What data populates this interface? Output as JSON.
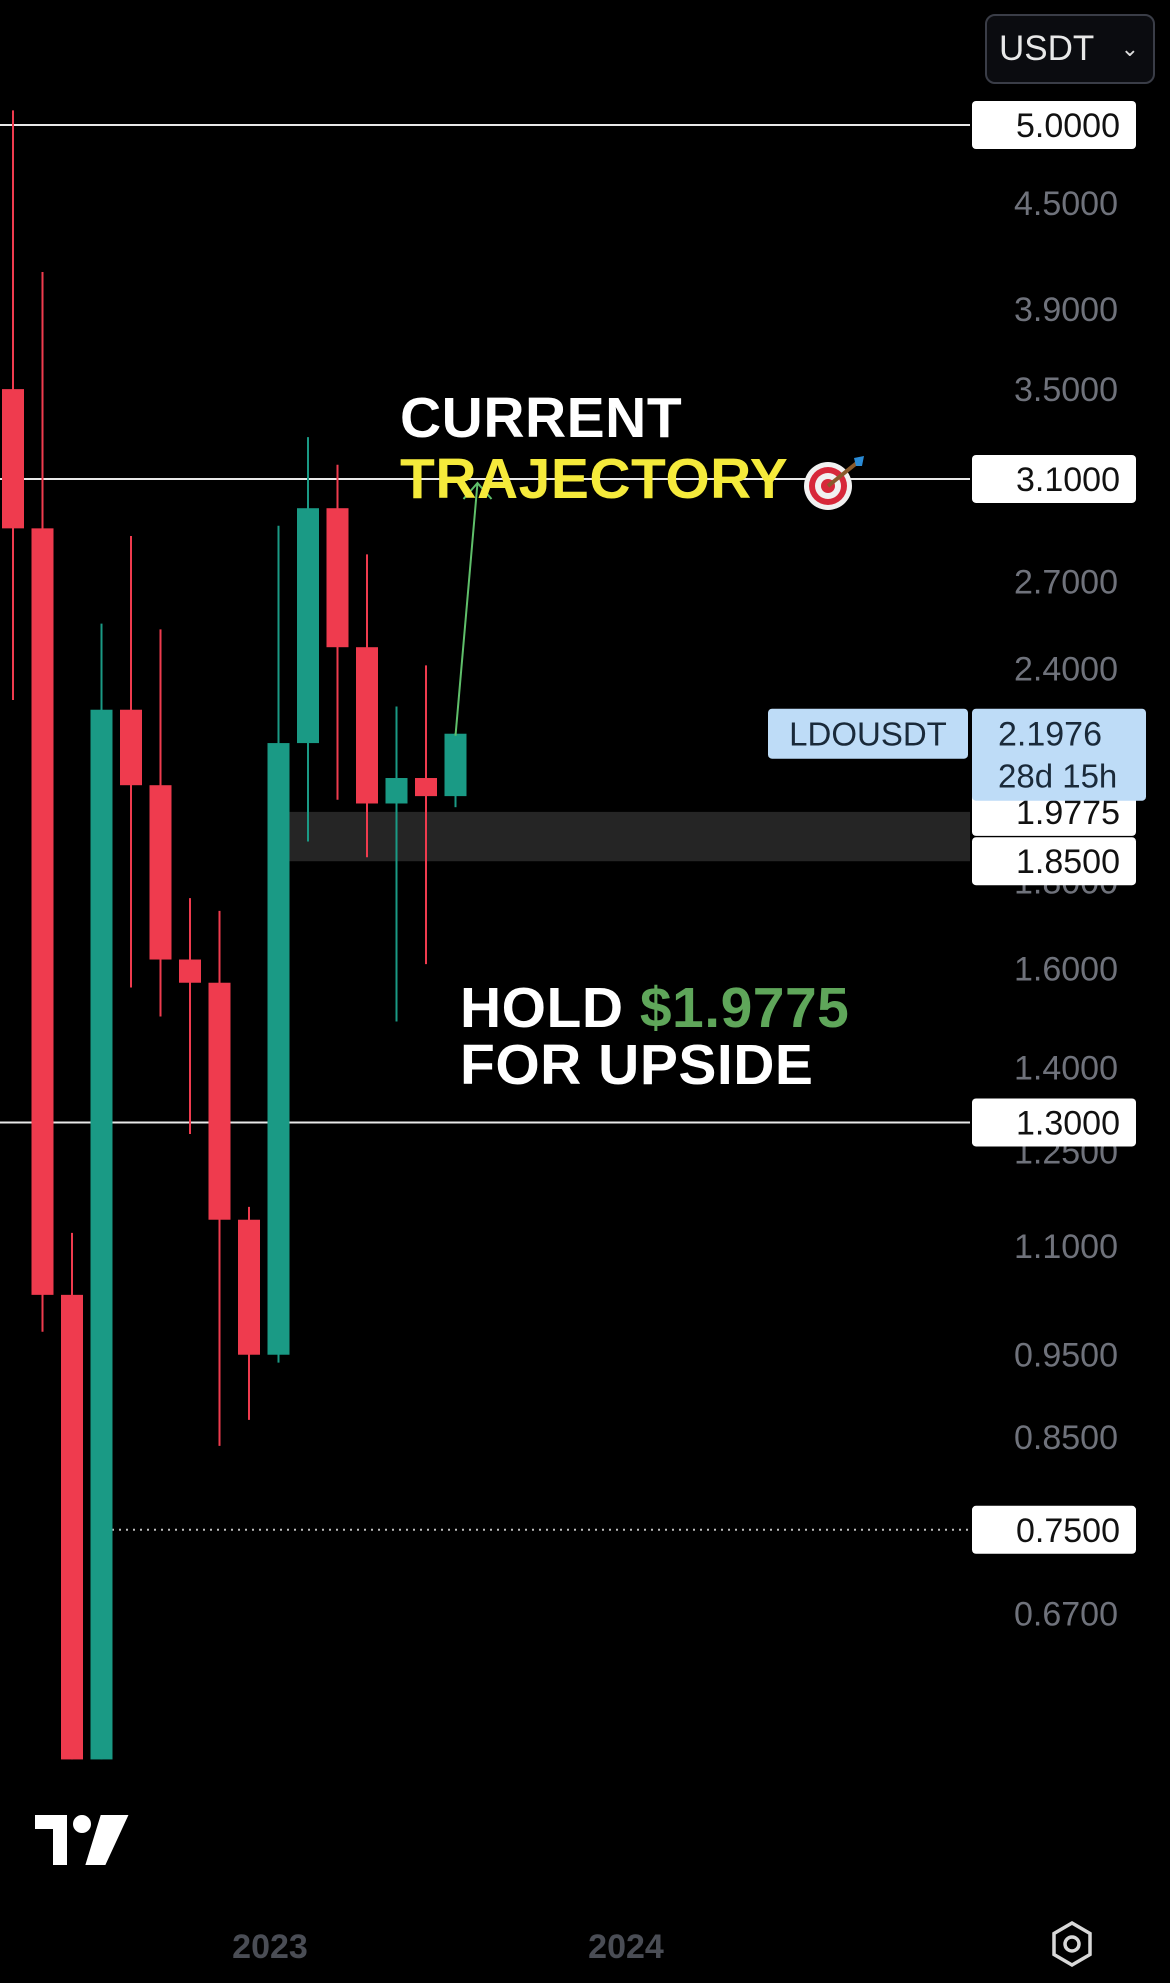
{
  "header": {
    "currency": "USDT",
    "currency_icon": "chevron-down-icon"
  },
  "annotations": {
    "title_line1": "CURRENT",
    "title_line2": "TRAJECTORY",
    "title_icon": "target-dart-icon",
    "hold_prefix": "HOLD",
    "hold_price": "$1.9775",
    "hold_line2": "FOR UPSIDE"
  },
  "colors": {
    "up": "#1a9a85",
    "down": "#ef3b4e",
    "title_yellow": "#f5ea3b",
    "price_green": "#5fa65a",
    "symbol_tag_bg": "#bedcf7",
    "zone_bg": "#252525"
  },
  "footer": {
    "logo": "tradingview-logo",
    "settings_icon": "settings-icon"
  },
  "chart_data": {
    "type": "candlestick",
    "symbol": "LDOUSDT",
    "interval": "1M",
    "y_scale": "log",
    "ylim": [
      0.6,
      5.3
    ],
    "y_ticks": [
      "4.5000",
      "3.9000",
      "3.5000",
      "2.7000",
      "2.4000",
      "1.8000",
      "1.6000",
      "1.4000",
      "1.2500",
      "1.1000",
      "0.9500",
      "0.8500",
      "0.6700"
    ],
    "x_ticks": [
      "2023",
      "2024"
    ],
    "candles": [
      {
        "o": 3.5,
        "h": 5.1,
        "l": 2.3,
        "c": 2.9
      },
      {
        "o": 2.9,
        "h": 4.1,
        "l": 0.98,
        "c": 1.03
      },
      {
        "o": 1.03,
        "h": 1.12,
        "l": 0.55,
        "c": 0.55
      },
      {
        "o": 0.55,
        "h": 2.55,
        "l": 0.55,
        "c": 2.27
      },
      {
        "o": 2.27,
        "h": 2.87,
        "l": 1.56,
        "c": 2.05
      },
      {
        "o": 2.05,
        "h": 2.53,
        "l": 1.5,
        "c": 1.62
      },
      {
        "o": 1.62,
        "h": 1.76,
        "l": 1.28,
        "c": 1.57
      },
      {
        "o": 1.57,
        "h": 1.73,
        "l": 0.84,
        "c": 1.14
      },
      {
        "o": 1.14,
        "h": 1.16,
        "l": 0.87,
        "c": 0.95
      },
      {
        "o": 0.95,
        "h": 2.91,
        "l": 0.94,
        "c": 2.17
      },
      {
        "o": 2.17,
        "h": 3.28,
        "l": 1.9,
        "c": 2.98
      },
      {
        "o": 2.98,
        "h": 3.16,
        "l": 2.01,
        "c": 2.47
      },
      {
        "o": 2.47,
        "h": 2.8,
        "l": 1.86,
        "c": 2.0
      },
      {
        "o": 2.0,
        "h": 2.28,
        "l": 1.49,
        "c": 2.07
      },
      {
        "o": 2.07,
        "h": 2.41,
        "l": 1.61,
        "c": 2.02
      },
      {
        "o": 2.02,
        "h": 2.2,
        "l": 1.99,
        "c": 2.1976
      }
    ],
    "horizontal_levels": [
      {
        "value": 5.0,
        "label": "5.0000",
        "style": "solid"
      },
      {
        "value": 3.1,
        "label": "3.1000",
        "style": "solid"
      },
      {
        "value": 1.3,
        "label": "1.3000",
        "style": "solid"
      },
      {
        "value": 0.75,
        "label": "0.7500",
        "style": "dotted"
      }
    ],
    "zone": {
      "from": 1.85,
      "to": 1.9775,
      "labels": [
        "1.9775",
        "1.8500"
      ]
    },
    "projection_arrow": {
      "from": 2.1976,
      "to": 3.1
    },
    "last_price": {
      "symbol": "LDOUSDT",
      "value": "2.1976",
      "countdown": "28d 15h"
    }
  }
}
